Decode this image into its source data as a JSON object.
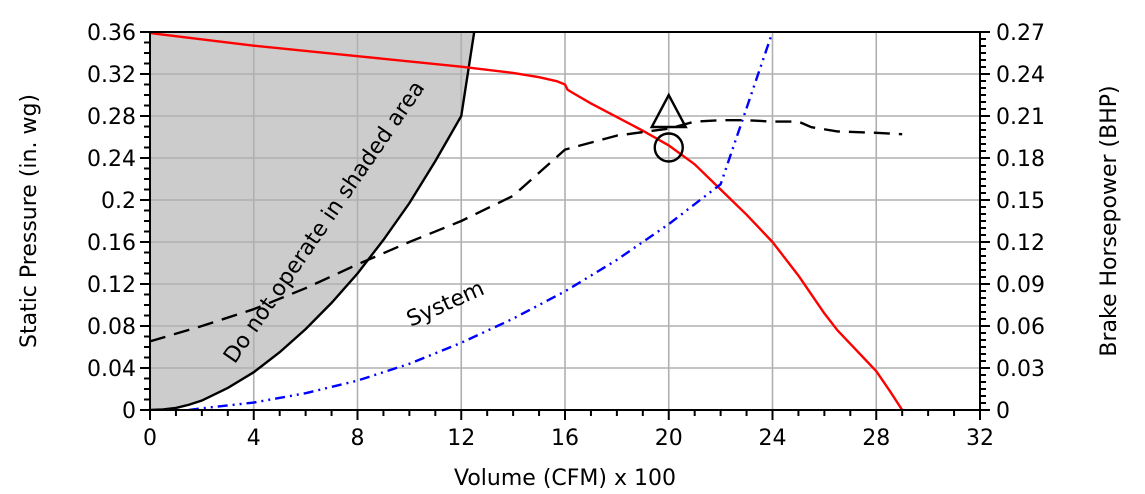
{
  "chart_data": {
    "type": "line",
    "xlabel": "Volume (CFM) x 100",
    "ylabel": "Static Pressure (in. wg)",
    "y2label": "Brake Horsepower (BHP)",
    "xlim": [
      0,
      32
    ],
    "ylim": [
      0,
      0.36
    ],
    "y2lim": [
      0,
      0.27
    ],
    "grid": true,
    "x_ticks": [
      "0",
      "4",
      "8",
      "12",
      "16",
      "20",
      "24",
      "28",
      "32"
    ],
    "y_ticks": [
      "0",
      "0.04",
      "0.08",
      "0.12",
      "0.16",
      "0.2",
      "0.24",
      "0.28",
      "0.32",
      "0.36"
    ],
    "y2_ticks": [
      "0",
      "0.03",
      "0.06",
      "0.09",
      "0.12",
      "0.15",
      "0.18",
      "0.21",
      "0.24",
      "0.27"
    ],
    "shaded_region": {
      "label": "Do not operate in shaded area",
      "fill": "#cccccc",
      "boundary": {
        "x": [
          0,
          0.5,
          1,
          1.5,
          2,
          3,
          4,
          5,
          6,
          7,
          8,
          9,
          10,
          11,
          12,
          12.5
        ],
        "y": [
          0,
          0.0005,
          0.002,
          0.005,
          0.009,
          0.021,
          0.036,
          0.055,
          0.077,
          0.102,
          0.13,
          0.162,
          0.197,
          0.237,
          0.28,
          0.36
        ]
      }
    },
    "series": [
      {
        "key": "static_pressure",
        "color": "#ff0000",
        "dash": "solid",
        "axis": "left",
        "x": [
          0,
          4,
          8,
          12,
          14,
          15,
          15.7,
          16,
          16.1,
          16.3,
          17,
          18,
          19,
          20,
          21,
          22,
          23,
          24,
          25,
          26,
          26.5,
          27,
          27.5,
          28,
          28.5,
          29
        ],
        "y": [
          0.359,
          0.347,
          0.337,
          0.327,
          0.321,
          0.317,
          0.313,
          0.31,
          0.305,
          0.302,
          0.292,
          0.279,
          0.266,
          0.252,
          0.234,
          0.21,
          0.186,
          0.16,
          0.128,
          0.092,
          0.076,
          0.063,
          0.05,
          0.037,
          0.019,
          0
        ]
      },
      {
        "key": "brake_horsepower",
        "color": "#000000",
        "dash": "long-dash",
        "axis": "right",
        "x": [
          0,
          2,
          4,
          6,
          8,
          10,
          12,
          14,
          16,
          18,
          20,
          21,
          22,
          23,
          24,
          25,
          25.5,
          26.5,
          28,
          29
        ],
        "y": [
          0.049,
          0.06,
          0.072,
          0.087,
          0.104,
          0.12,
          0.135,
          0.153,
          0.186,
          0.196,
          0.201,
          0.206,
          0.207,
          0.207,
          0.206,
          0.206,
          0.202,
          0.199,
          0.198,
          0.197
        ]
      },
      {
        "key": "system",
        "label": "System",
        "color": "#0000ff",
        "dash": "dash-dot-dot",
        "axis": "left",
        "x": [
          1.5,
          2,
          4,
          6,
          8,
          10,
          12,
          14,
          16,
          18,
          20,
          22,
          24
        ],
        "y": [
          0,
          0.0016,
          0.0071,
          0.016,
          0.028,
          0.044,
          0.064,
          0.087,
          0.113,
          0.143,
          0.177,
          0.215,
          0.36
        ]
      }
    ],
    "markers": [
      {
        "shape": "triangle",
        "x": 20,
        "y": 0.28
      },
      {
        "shape": "circle",
        "x": 20,
        "y": 0.25
      }
    ],
    "annotations": [
      {
        "text": "System",
        "x": 11.5,
        "y": 0.095,
        "angle_deg": -24
      }
    ]
  }
}
